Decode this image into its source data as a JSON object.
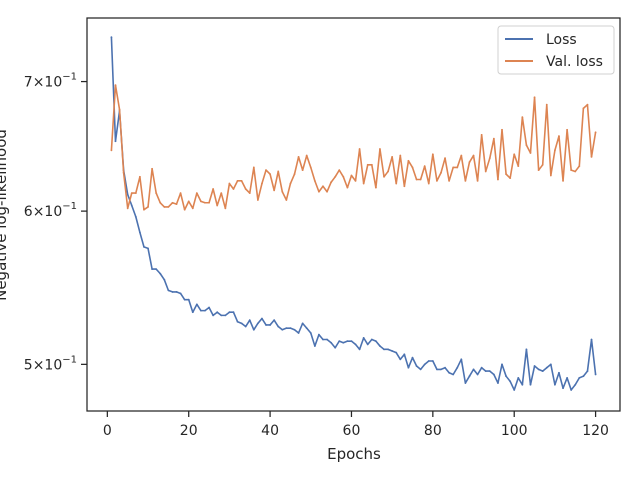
{
  "chart_data": {
    "type": "line",
    "xlabel": "Epochs",
    "ylabel": "Negative log-likelihood",
    "y_scale": "log",
    "xlim": [
      -5,
      126
    ],
    "ylim": [
      0.473,
      0.755
    ],
    "x_ticks": [
      0,
      20,
      40,
      60,
      80,
      100,
      120
    ],
    "x_tick_labels": [
      "0",
      "20",
      "40",
      "60",
      "80",
      "100",
      "120"
    ],
    "y_ticks": [
      0.5,
      0.6,
      0.7
    ],
    "y_tick_labels": [
      {
        "base": "5×10",
        "exp": "−1"
      },
      {
        "base": "6×10",
        "exp": "−1"
      },
      {
        "base": "7×10",
        "exp": "−1"
      }
    ],
    "grid": false,
    "legend": {
      "position": "top-right",
      "entries": [
        "Loss",
        "Val. loss"
      ]
    },
    "x": [
      1,
      2,
      3,
      4,
      5,
      6,
      7,
      8,
      9,
      10,
      11,
      12,
      13,
      14,
      15,
      16,
      17,
      18,
      19,
      20,
      21,
      22,
      23,
      24,
      25,
      26,
      27,
      28,
      29,
      30,
      31,
      32,
      33,
      34,
      35,
      36,
      37,
      38,
      39,
      40,
      41,
      42,
      43,
      44,
      45,
      46,
      47,
      48,
      49,
      50,
      51,
      52,
      53,
      54,
      55,
      56,
      57,
      58,
      59,
      60,
      61,
      62,
      63,
      64,
      65,
      66,
      67,
      68,
      69,
      70,
      71,
      72,
      73,
      74,
      75,
      76,
      77,
      78,
      79,
      80,
      81,
      82,
      83,
      84,
      85,
      86,
      87,
      88,
      89,
      90,
      91,
      92,
      93,
      94,
      95,
      96,
      97,
      98,
      99,
      100,
      101,
      102,
      103,
      104,
      105,
      106,
      107,
      108,
      109,
      110,
      111,
      112,
      113,
      114,
      115,
      116,
      117,
      118,
      119,
      120
    ],
    "series": [
      {
        "name": "Loss",
        "color": "#4c72b0",
        "values": [
          0.738,
          0.652,
          0.676,
          0.63,
          0.612,
          0.604,
          0.596,
          0.585,
          0.575,
          0.574,
          0.56,
          0.56,
          0.557,
          0.553,
          0.546,
          0.545,
          0.545,
          0.544,
          0.54,
          0.54,
          0.532,
          0.537,
          0.533,
          0.533,
          0.535,
          0.53,
          0.532,
          0.53,
          0.53,
          0.532,
          0.532,
          0.526,
          0.525,
          0.523,
          0.527,
          0.521,
          0.525,
          0.528,
          0.524,
          0.524,
          0.527,
          0.523,
          0.521,
          0.522,
          0.522,
          0.521,
          0.519,
          0.525,
          0.522,
          0.519,
          0.511,
          0.518,
          0.515,
          0.515,
          0.513,
          0.51,
          0.514,
          0.513,
          0.514,
          0.514,
          0.512,
          0.509,
          0.516,
          0.512,
          0.515,
          0.514,
          0.511,
          0.509,
          0.509,
          0.508,
          0.507,
          0.503,
          0.506,
          0.498,
          0.504,
          0.499,
          0.497,
          0.5,
          0.502,
          0.502,
          0.497,
          0.497,
          0.498,
          0.495,
          0.494,
          0.498,
          0.503,
          0.489,
          0.493,
          0.497,
          0.494,
          0.498,
          0.496,
          0.496,
          0.494,
          0.489,
          0.5,
          0.493,
          0.49,
          0.485,
          0.492,
          0.488,
          0.509,
          0.488,
          0.499,
          0.497,
          0.496,
          0.498,
          0.5,
          0.488,
          0.495,
          0.486,
          0.492,
          0.485,
          0.488,
          0.492,
          0.493,
          0.496,
          0.515,
          0.494
        ]
      },
      {
        "name": "Val. loss",
        "color": "#dd8452",
        "values": [
          0.645,
          0.697,
          0.677,
          0.628,
          0.602,
          0.613,
          0.613,
          0.625,
          0.601,
          0.603,
          0.631,
          0.613,
          0.606,
          0.603,
          0.603,
          0.606,
          0.605,
          0.613,
          0.601,
          0.607,
          0.602,
          0.613,
          0.607,
          0.606,
          0.606,
          0.616,
          0.604,
          0.613,
          0.602,
          0.62,
          0.616,
          0.622,
          0.622,
          0.616,
          0.613,
          0.632,
          0.608,
          0.62,
          0.63,
          0.627,
          0.615,
          0.629,
          0.614,
          0.608,
          0.62,
          0.627,
          0.64,
          0.63,
          0.641,
          0.632,
          0.622,
          0.614,
          0.618,
          0.614,
          0.621,
          0.625,
          0.63,
          0.625,
          0.617,
          0.626,
          0.622,
          0.646,
          0.62,
          0.634,
          0.634,
          0.617,
          0.646,
          0.625,
          0.629,
          0.64,
          0.62,
          0.641,
          0.618,
          0.637,
          0.632,
          0.623,
          0.623,
          0.633,
          0.62,
          0.642,
          0.622,
          0.628,
          0.639,
          0.622,
          0.632,
          0.632,
          0.641,
          0.622,
          0.636,
          0.641,
          0.622,
          0.657,
          0.629,
          0.639,
          0.654,
          0.623,
          0.661,
          0.627,
          0.624,
          0.642,
          0.633,
          0.671,
          0.649,
          0.643,
          0.687,
          0.63,
          0.634,
          0.681,
          0.626,
          0.645,
          0.656,
          0.622,
          0.661,
          0.63,
          0.629,
          0.633,
          0.678,
          0.681,
          0.64,
          0.659
        ]
      }
    ]
  }
}
